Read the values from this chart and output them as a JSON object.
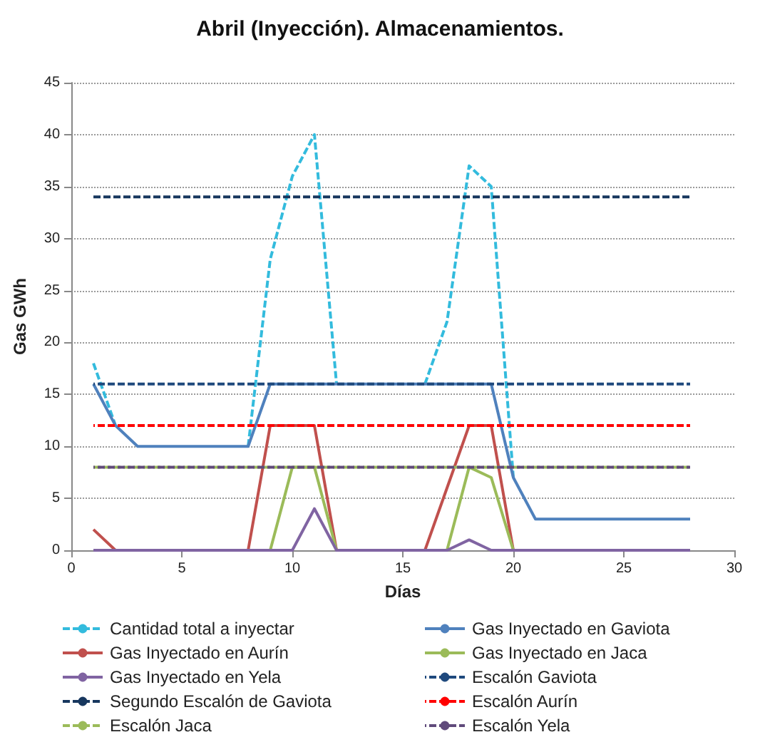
{
  "chart_data": {
    "type": "line",
    "title": "Abril (Inyección). Almacenamientos.",
    "xlabel": "Días",
    "ylabel": "Gas GWh",
    "x": [
      1,
      2,
      3,
      4,
      5,
      6,
      7,
      8,
      9,
      10,
      11,
      12,
      13,
      14,
      15,
      16,
      17,
      18,
      19,
      20,
      21,
      22,
      23,
      24,
      25,
      26,
      27,
      28
    ],
    "xlim": [
      0,
      30
    ],
    "xticks": [
      0,
      5,
      10,
      15,
      20,
      25,
      30
    ],
    "ylim": [
      0,
      45
    ],
    "yticks": [
      0,
      5,
      10,
      15,
      20,
      25,
      30,
      35,
      40,
      45
    ],
    "grid": "y",
    "legend": "bottom",
    "marker": "none",
    "series": [
      {
        "name": "Cantidad total a inyectar",
        "color": "#33bbdd",
        "line_style": "dashed",
        "values": [
          18,
          12,
          null,
          null,
          null,
          null,
          null,
          10,
          28,
          36,
          40,
          16,
          null,
          null,
          null,
          16,
          22,
          37,
          35,
          7,
          null,
          null,
          null,
          null,
          null,
          null,
          null,
          null
        ]
      },
      {
        "name": "Gas Inyectado en Gaviota",
        "color": "#4f81bd",
        "line_style": "solid",
        "values": [
          16,
          12,
          10,
          10,
          10,
          10,
          10,
          10,
          16,
          16,
          16,
          16,
          16,
          16,
          16,
          16,
          16,
          16,
          16,
          7,
          3,
          3,
          3,
          3,
          3,
          3,
          3,
          3
        ]
      },
      {
        "name": "Gas Inyectado en Aurín",
        "color": "#c0504d",
        "line_style": "solid",
        "values": [
          2,
          0,
          null,
          null,
          null,
          null,
          null,
          0,
          12,
          12,
          12,
          0,
          null,
          null,
          null,
          0,
          6,
          12,
          12,
          0,
          null,
          null,
          null,
          null,
          null,
          null,
          null,
          null
        ]
      },
      {
        "name": "Gas Inyectado en Jaca",
        "color": "#9bbb59",
        "line_style": "solid",
        "values": [
          null,
          null,
          null,
          null,
          null,
          null,
          null,
          null,
          0,
          8,
          8,
          0,
          null,
          null,
          null,
          null,
          0,
          8,
          7,
          0,
          null,
          null,
          null,
          null,
          null,
          null,
          null,
          null
        ]
      },
      {
        "name": "Gas Inyectado en Yela",
        "color": "#8064a2",
        "line_style": "solid",
        "values": [
          0,
          0,
          0,
          0,
          0,
          0,
          0,
          0,
          0,
          0,
          4,
          0,
          0,
          0,
          0,
          0,
          0,
          1,
          0,
          0,
          0,
          0,
          0,
          0,
          0,
          0,
          0,
          0
        ]
      },
      {
        "name": "Escalón Gaviota",
        "color": "#1f497d",
        "line_style": "dashed",
        "values": [
          16,
          16,
          16,
          16,
          16,
          16,
          16,
          16,
          16,
          16,
          16,
          16,
          16,
          16,
          16,
          16,
          16,
          16,
          16,
          16,
          16,
          16,
          16,
          16,
          16,
          16,
          16,
          16
        ]
      },
      {
        "name": "Segundo Escalón de Gaviota",
        "color": "#17375e",
        "line_style": "dashed",
        "values": [
          34,
          34,
          34,
          34,
          34,
          34,
          34,
          34,
          34,
          34,
          34,
          34,
          34,
          34,
          34,
          34,
          34,
          34,
          34,
          34,
          34,
          34,
          34,
          34,
          34,
          34,
          34,
          34
        ]
      },
      {
        "name": "Escalón Aurín",
        "color": "#ff0000",
        "line_style": "dashed",
        "values": [
          12,
          12,
          12,
          12,
          12,
          12,
          12,
          12,
          12,
          12,
          12,
          12,
          12,
          12,
          12,
          12,
          12,
          12,
          12,
          12,
          12,
          12,
          12,
          12,
          12,
          12,
          12,
          12
        ]
      },
      {
        "name": "Escalón Jaca",
        "color": "#9bbb59",
        "line_style": "dashed",
        "values": [
          8,
          8,
          8,
          8,
          8,
          8,
          8,
          8,
          8,
          8,
          8,
          8,
          8,
          8,
          8,
          8,
          8,
          8,
          8,
          8,
          8,
          8,
          8,
          8,
          8,
          8,
          8,
          8
        ]
      },
      {
        "name": "Escalón Yela",
        "color": "#604a7b",
        "line_style": "dashed",
        "values": [
          8,
          8,
          8,
          8,
          8,
          8,
          8,
          8,
          8,
          8,
          8,
          8,
          8,
          8,
          8,
          8,
          8,
          8,
          8,
          8,
          8,
          8,
          8,
          8,
          8,
          8,
          8,
          8
        ]
      }
    ]
  }
}
